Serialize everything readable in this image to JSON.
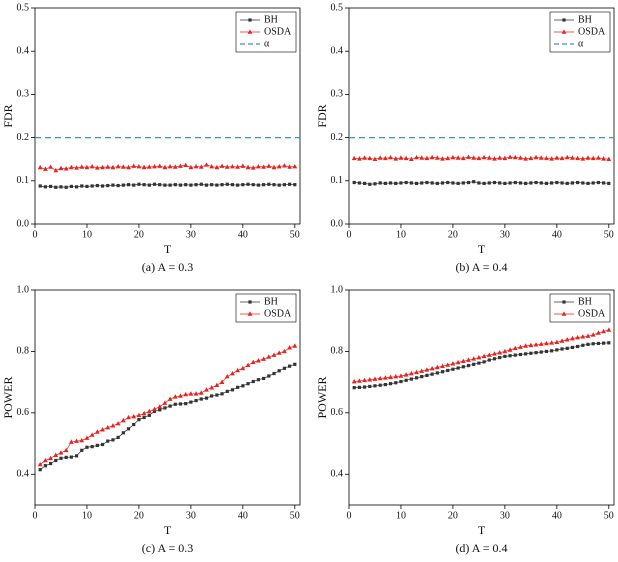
{
  "chart_data": [
    {
      "type": "line",
      "caption": "(a) A = 0.3",
      "xlabel": "T",
      "ylabel": "FDR",
      "legend": "upper right",
      "xlim": [
        0,
        51
      ],
      "xticks": [
        0,
        10,
        20,
        30,
        40,
        50
      ],
      "ylim": [
        0,
        0.5
      ],
      "yticks": [
        {
          "value": 0,
          "label": "0.0"
        },
        0.1,
        0.2,
        0.3,
        0.4,
        0.5
      ],
      "x": [
        1,
        2,
        3,
        4,
        5,
        6,
        7,
        8,
        9,
        10,
        11,
        12,
        13,
        14,
        15,
        16,
        17,
        18,
        19,
        20,
        21,
        22,
        23,
        24,
        25,
        26,
        27,
        28,
        29,
        30,
        31,
        32,
        33,
        34,
        35,
        36,
        37,
        38,
        39,
        40,
        41,
        42,
        43,
        44,
        45,
        46,
        47,
        48,
        49,
        50
      ],
      "series": [
        {
          "name": "BH",
          "color": "#333333",
          "marker": "square",
          "values": [
            0.088,
            0.086,
            0.087,
            0.085,
            0.086,
            0.085,
            0.087,
            0.086,
            0.088,
            0.087,
            0.088,
            0.089,
            0.088,
            0.089,
            0.09,
            0.089,
            0.09,
            0.091,
            0.09,
            0.092,
            0.091,
            0.09,
            0.092,
            0.091,
            0.09,
            0.09,
            0.091,
            0.09,
            0.091,
            0.09,
            0.091,
            0.092,
            0.09,
            0.091,
            0.09,
            0.091,
            0.092,
            0.091,
            0.09,
            0.091,
            0.092,
            0.091,
            0.09,
            0.091,
            0.092,
            0.091,
            0.09,
            0.091,
            0.092,
            0.091
          ]
        },
        {
          "name": "OSDA",
          "color": "#e8231e",
          "marker": "triangle",
          "values": [
            0.131,
            0.127,
            0.132,
            0.124,
            0.129,
            0.128,
            0.131,
            0.13,
            0.132,
            0.131,
            0.133,
            0.13,
            0.131,
            0.132,
            0.131,
            0.133,
            0.132,
            0.131,
            0.134,
            0.133,
            0.131,
            0.132,
            0.133,
            0.134,
            0.131,
            0.133,
            0.132,
            0.134,
            0.136,
            0.131,
            0.133,
            0.132,
            0.137,
            0.133,
            0.131,
            0.134,
            0.132,
            0.133,
            0.132,
            0.134,
            0.131,
            0.13,
            0.133,
            0.132,
            0.134,
            0.131,
            0.133,
            0.135,
            0.132,
            0.133
          ]
        }
      ],
      "hline": {
        "name": "α",
        "value": 0.2,
        "color": "#3b8fd8"
      }
    },
    {
      "type": "line",
      "caption": "(b) A = 0.4",
      "xlabel": "T",
      "ylabel": "FDR",
      "legend": "upper right",
      "xlim": [
        0,
        51
      ],
      "xticks": [
        0,
        10,
        20,
        30,
        40,
        50
      ],
      "ylim": [
        0,
        0.5
      ],
      "yticks": [
        {
          "value": 0,
          "label": "0.0"
        },
        0.1,
        0.2,
        0.3,
        0.4,
        0.5
      ],
      "x": [
        1,
        2,
        3,
        4,
        5,
        6,
        7,
        8,
        9,
        10,
        11,
        12,
        13,
        14,
        15,
        16,
        17,
        18,
        19,
        20,
        21,
        22,
        23,
        24,
        25,
        26,
        27,
        28,
        29,
        30,
        31,
        32,
        33,
        34,
        35,
        36,
        37,
        38,
        39,
        40,
        41,
        42,
        43,
        44,
        45,
        46,
        47,
        48,
        49,
        50
      ],
      "series": [
        {
          "name": "BH",
          "color": "#333333",
          "marker": "square",
          "values": [
            0.096,
            0.095,
            0.094,
            0.092,
            0.093,
            0.095,
            0.094,
            0.095,
            0.094,
            0.095,
            0.096,
            0.095,
            0.094,
            0.095,
            0.096,
            0.095,
            0.094,
            0.095,
            0.096,
            0.095,
            0.094,
            0.095,
            0.096,
            0.098,
            0.095,
            0.094,
            0.095,
            0.096,
            0.095,
            0.094,
            0.095,
            0.096,
            0.095,
            0.094,
            0.095,
            0.096,
            0.095,
            0.094,
            0.095,
            0.096,
            0.095,
            0.094,
            0.095,
            0.096,
            0.095,
            0.094,
            0.095,
            0.096,
            0.095,
            0.094
          ]
        },
        {
          "name": "OSDA",
          "color": "#e8231e",
          "marker": "triangle",
          "values": [
            0.152,
            0.151,
            0.153,
            0.152,
            0.15,
            0.153,
            0.152,
            0.154,
            0.151,
            0.153,
            0.152,
            0.15,
            0.154,
            0.153,
            0.152,
            0.154,
            0.153,
            0.151,
            0.152,
            0.154,
            0.153,
            0.152,
            0.155,
            0.153,
            0.152,
            0.154,
            0.153,
            0.151,
            0.153,
            0.152,
            0.155,
            0.154,
            0.153,
            0.151,
            0.152,
            0.154,
            0.153,
            0.152,
            0.151,
            0.153,
            0.152,
            0.154,
            0.153,
            0.152,
            0.151,
            0.153,
            0.152,
            0.153,
            0.151,
            0.15
          ]
        }
      ],
      "hline": {
        "name": "α",
        "value": 0.2,
        "color": "#3b8fd8"
      }
    },
    {
      "type": "line",
      "caption": "(c) A = 0.3",
      "xlabel": "T",
      "ylabel": "POWER",
      "legend": "upper right",
      "xlim": [
        0,
        51
      ],
      "xticks": [
        0,
        10,
        20,
        30,
        40,
        50
      ],
      "ylim": [
        0.3,
        1.0
      ],
      "yticks": [
        0.4,
        0.6,
        0.8,
        {
          "value": 1,
          "label": "1.0"
        }
      ],
      "x": [
        1,
        2,
        3,
        4,
        5,
        6,
        7,
        8,
        9,
        10,
        11,
        12,
        13,
        14,
        15,
        16,
        17,
        18,
        19,
        20,
        21,
        22,
        23,
        24,
        25,
        26,
        27,
        28,
        29,
        30,
        31,
        32,
        33,
        34,
        35,
        36,
        37,
        38,
        39,
        40,
        41,
        42,
        43,
        44,
        45,
        46,
        47,
        48,
        49,
        50
      ],
      "series": [
        {
          "name": "BH",
          "color": "#333333",
          "marker": "square",
          "values": [
            0.415,
            0.428,
            0.435,
            0.445,
            0.452,
            0.455,
            0.456,
            0.46,
            0.478,
            0.488,
            0.49,
            0.494,
            0.497,
            0.508,
            0.512,
            0.52,
            0.535,
            0.548,
            0.562,
            0.578,
            0.585,
            0.592,
            0.605,
            0.61,
            0.616,
            0.622,
            0.628,
            0.629,
            0.63,
            0.635,
            0.64,
            0.645,
            0.648,
            0.655,
            0.658,
            0.662,
            0.67,
            0.675,
            0.683,
            0.688,
            0.695,
            0.702,
            0.708,
            0.712,
            0.72,
            0.728,
            0.737,
            0.745,
            0.752,
            0.758
          ]
        },
        {
          "name": "OSDA",
          "color": "#e8231e",
          "marker": "triangle",
          "values": [
            0.432,
            0.445,
            0.452,
            0.462,
            0.47,
            0.478,
            0.505,
            0.508,
            0.51,
            0.518,
            0.528,
            0.538,
            0.545,
            0.552,
            0.558,
            0.565,
            0.575,
            0.585,
            0.588,
            0.592,
            0.598,
            0.605,
            0.612,
            0.62,
            0.632,
            0.645,
            0.652,
            0.655,
            0.66,
            0.662,
            0.662,
            0.665,
            0.675,
            0.682,
            0.69,
            0.7,
            0.718,
            0.728,
            0.738,
            0.745,
            0.755,
            0.765,
            0.77,
            0.775,
            0.782,
            0.788,
            0.795,
            0.8,
            0.812,
            0.818
          ]
        }
      ]
    },
    {
      "type": "line",
      "caption": "(d) A = 0.4",
      "xlabel": "T",
      "ylabel": "POWER",
      "legend": "upper right",
      "xlim": [
        0,
        51
      ],
      "xticks": [
        0,
        10,
        20,
        30,
        40,
        50
      ],
      "ylim": [
        0.3,
        1.0
      ],
      "yticks": [
        0.4,
        0.6,
        0.8,
        {
          "value": 1,
          "label": "1.0"
        }
      ],
      "x": [
        1,
        2,
        3,
        4,
        5,
        6,
        7,
        8,
        9,
        10,
        11,
        12,
        13,
        14,
        15,
        16,
        17,
        18,
        19,
        20,
        21,
        22,
        23,
        24,
        25,
        26,
        27,
        28,
        29,
        30,
        31,
        32,
        33,
        34,
        35,
        36,
        37,
        38,
        39,
        40,
        41,
        42,
        43,
        44,
        45,
        46,
        47,
        48,
        49,
        50
      ],
      "series": [
        {
          "name": "BH",
          "color": "#333333",
          "marker": "square",
          "values": [
            0.682,
            0.683,
            0.684,
            0.686,
            0.688,
            0.69,
            0.692,
            0.695,
            0.698,
            0.702,
            0.706,
            0.71,
            0.714,
            0.718,
            0.722,
            0.726,
            0.73,
            0.734,
            0.738,
            0.742,
            0.746,
            0.75,
            0.754,
            0.758,
            0.762,
            0.766,
            0.772,
            0.776,
            0.78,
            0.784,
            0.786,
            0.788,
            0.79,
            0.792,
            0.794,
            0.796,
            0.798,
            0.8,
            0.802,
            0.805,
            0.808,
            0.81,
            0.813,
            0.816,
            0.82,
            0.823,
            0.825,
            0.826,
            0.827,
            0.828
          ]
        },
        {
          "name": "OSDA",
          "color": "#e8231e",
          "marker": "triangle",
          "values": [
            0.702,
            0.704,
            0.706,
            0.708,
            0.71,
            0.712,
            0.714,
            0.716,
            0.718,
            0.72,
            0.724,
            0.728,
            0.732,
            0.736,
            0.74,
            0.744,
            0.748,
            0.752,
            0.756,
            0.76,
            0.764,
            0.768,
            0.772,
            0.776,
            0.78,
            0.784,
            0.788,
            0.792,
            0.796,
            0.8,
            0.805,
            0.81,
            0.814,
            0.818,
            0.82,
            0.822,
            0.824,
            0.826,
            0.828,
            0.83,
            0.834,
            0.838,
            0.842,
            0.845,
            0.848,
            0.85,
            0.854,
            0.86,
            0.865,
            0.87
          ]
        }
      ]
    }
  ]
}
